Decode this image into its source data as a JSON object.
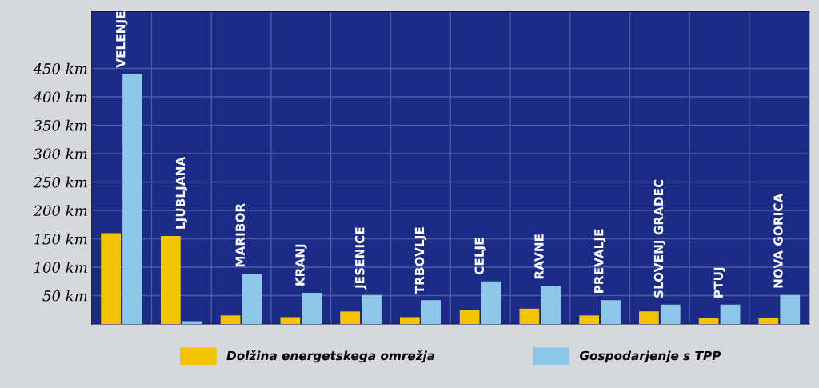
{
  "chart_data": {
    "type": "bar",
    "categories": [
      "VELENJE",
      "LJUBLJANA",
      "MARIBOR",
      "KRANJ",
      "JESENICE",
      "TRBOVLJE",
      "CELJE",
      "RAVNE",
      "PREVALJE",
      "SLOVENJ GRADEC",
      "PTUJ",
      "NOVA GORICA"
    ],
    "series": [
      {
        "name": "Dolžina energetskega omrežja",
        "color": "#f2c500",
        "values": [
          160,
          155,
          15,
          12,
          22,
          12,
          24,
          27,
          15,
          22,
          10,
          10
        ]
      },
      {
        "name": "Gospodarjenje s TPP",
        "color": "#8ec6ea",
        "values": [
          440,
          5,
          88,
          55,
          51,
          42,
          75,
          67,
          42,
          34,
          34,
          51
        ]
      }
    ],
    "ylim": [
      0,
      550
    ],
    "yticks": [
      {
        "value": 50,
        "label": "50 km"
      },
      {
        "value": 100,
        "label": "100 km"
      },
      {
        "value": 150,
        "label": "150 km"
      },
      {
        "value": 200,
        "label": "200 km"
      },
      {
        "value": 250,
        "label": "250 km"
      },
      {
        "value": 300,
        "label": "300 km"
      },
      {
        "value": 350,
        "label": "350 km"
      },
      {
        "value": 400,
        "label": "400 km"
      },
      {
        "value": 450,
        "label": "450 km"
      }
    ],
    "grid": "y",
    "legend": "bottom"
  }
}
